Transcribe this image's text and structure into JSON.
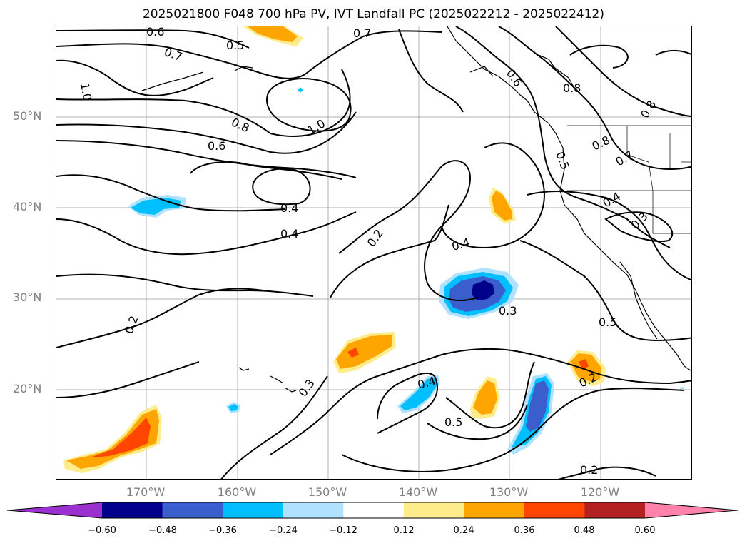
{
  "title": "2025021800 F048 700 hPa PV, IVT Landfall PC (2025022212 - 2025022412)",
  "map": {
    "lat_labels": [
      "50°N",
      "40°N",
      "30°N",
      "20°N"
    ],
    "lon_labels": [
      "170°W",
      "160°W",
      "150°W",
      "140°W",
      "130°W",
      "120°W"
    ],
    "contour_labels": [
      "0.6",
      "0.7",
      "0.5",
      "0.7",
      "1.0",
      "0.8",
      "1.0",
      "0.6",
      "0.4",
      "0.4",
      "0.2",
      "0.4",
      "0.6",
      "0.8",
      "0.8",
      "0.5",
      "0.7",
      "0.8",
      "0.4",
      "0.3",
      "0.3",
      "0.5",
      "0.2",
      "0.4",
      "0.5",
      "0.3",
      "0.2",
      "0.2"
    ]
  },
  "colorbar": {
    "ticks": [
      "−0.60",
      "−0.48",
      "−0.36",
      "−0.24",
      "−0.12",
      "0.12",
      "0.24",
      "0.36",
      "0.48",
      "0.60"
    ],
    "colors": [
      "#9b30d0",
      "#00008b",
      "#3a5fcd",
      "#00bfff",
      "#b0e2ff",
      "#ffffff",
      "#ffec8b",
      "#ffa500",
      "#ff4500",
      "#b22222",
      "#ff82ab"
    ]
  }
}
